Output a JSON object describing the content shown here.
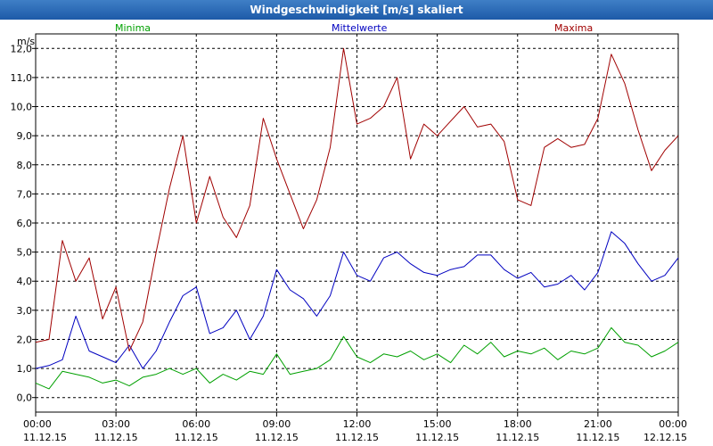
{
  "chart_data": {
    "type": "line",
    "title": "Windgeschwindigkeit [m/s] skaliert",
    "ylabel": "m/s",
    "ylim": [
      -0.5,
      12.5
    ],
    "yticks": [
      "0,0",
      "1,0",
      "2,0",
      "3,0",
      "4,0",
      "5,0",
      "6,0",
      "7,0",
      "8,0",
      "9,0",
      "10,0",
      "11,0",
      "12,0"
    ],
    "xlim": [
      0,
      24
    ],
    "xticks": [
      {
        "time": "00:00",
        "date": "11.12.15"
      },
      {
        "time": "03:00",
        "date": "11.12.15"
      },
      {
        "time": "06:00",
        "date": "11.12.15"
      },
      {
        "time": "09:00",
        "date": "11.12.15"
      },
      {
        "time": "12:00",
        "date": "11.12.15"
      },
      {
        "time": "15:00",
        "date": "11.12.15"
      },
      {
        "time": "18:00",
        "date": "11.12.15"
      },
      {
        "time": "21:00",
        "date": "11.12.15"
      },
      {
        "time": "00:00",
        "date": "12.12.15"
      }
    ],
    "grid": true,
    "series": [
      {
        "name": "Minima",
        "color": "#00a000",
        "x": [
          0,
          0.5,
          1,
          1.5,
          2,
          2.5,
          3,
          3.5,
          4,
          4.5,
          5,
          5.5,
          6,
          6.5,
          7,
          7.5,
          8,
          8.5,
          9,
          9.5,
          10,
          10.5,
          11,
          11.5,
          12,
          12.5,
          13,
          13.5,
          14,
          14.5,
          15,
          15.5,
          16,
          16.5,
          17,
          17.5,
          18,
          18.5,
          19,
          19.5,
          20,
          20.5,
          21,
          21.5,
          22,
          22.5,
          23,
          23.5,
          24
        ],
        "values": [
          0.5,
          0.3,
          0.9,
          0.8,
          0.7,
          0.5,
          0.6,
          0.4,
          0.7,
          0.8,
          1.0,
          0.8,
          1.0,
          0.5,
          0.8,
          0.6,
          0.9,
          0.8,
          1.5,
          0.8,
          0.9,
          1.0,
          1.3,
          2.1,
          1.4,
          1.2,
          1.5,
          1.4,
          1.6,
          1.3,
          1.5,
          1.2,
          1.8,
          1.5,
          1.9,
          1.4,
          1.6,
          1.5,
          1.7,
          1.3,
          1.6,
          1.5,
          1.7,
          2.4,
          1.9,
          1.8,
          1.4,
          1.6,
          1.9
        ]
      },
      {
        "name": "Mittelwerte",
        "color": "#0000c0",
        "x": [
          0,
          0.5,
          1,
          1.5,
          2,
          2.5,
          3,
          3.5,
          4,
          4.5,
          5,
          5.5,
          6,
          6.5,
          7,
          7.5,
          8,
          8.5,
          9,
          9.5,
          10,
          10.5,
          11,
          11.5,
          12,
          12.5,
          13,
          13.5,
          14,
          14.5,
          15,
          15.5,
          16,
          16.5,
          17,
          17.5,
          18,
          18.5,
          19,
          19.5,
          20,
          20.5,
          21,
          21.5,
          22,
          22.5,
          23,
          23.5,
          24
        ],
        "values": [
          1.0,
          1.1,
          1.3,
          2.8,
          1.6,
          1.4,
          1.2,
          1.8,
          1.0,
          1.6,
          2.6,
          3.5,
          3.8,
          2.2,
          2.4,
          3.0,
          2.0,
          2.8,
          4.4,
          3.7,
          3.4,
          2.8,
          3.5,
          5.0,
          4.2,
          4.0,
          4.8,
          5.0,
          4.6,
          4.3,
          4.2,
          4.4,
          4.5,
          4.9,
          4.9,
          4.4,
          4.1,
          4.3,
          3.8,
          3.9,
          4.2,
          3.7,
          4.3,
          5.7,
          5.3,
          4.6,
          4.0,
          4.2,
          4.8
        ]
      },
      {
        "name": "Maxima",
        "color": "#a00000",
        "x": [
          0,
          0.5,
          1,
          1.5,
          2,
          2.5,
          3,
          3.5,
          4,
          4.5,
          5,
          5.5,
          6,
          6.5,
          7,
          7.5,
          8,
          8.5,
          9,
          9.5,
          10,
          10.5,
          11,
          11.5,
          12,
          12.5,
          13,
          13.5,
          14,
          14.5,
          15,
          15.5,
          16,
          16.5,
          17,
          17.5,
          18,
          18.5,
          19,
          19.5,
          20,
          20.5,
          21,
          21.5,
          22,
          22.5,
          23,
          23.5,
          24
        ],
        "values": [
          1.9,
          2.0,
          5.4,
          4.0,
          4.8,
          2.7,
          3.8,
          1.6,
          2.6,
          5.0,
          7.2,
          9.0,
          6.0,
          7.6,
          6.2,
          5.5,
          6.6,
          9.6,
          8.2,
          7.0,
          5.8,
          6.8,
          8.6,
          12.0,
          9.4,
          9.6,
          10.0,
          11.0,
          8.2,
          9.4,
          9.0,
          9.5,
          10.0,
          9.3,
          9.4,
          8.8,
          6.8,
          6.6,
          8.6,
          8.9,
          8.6,
          8.7,
          9.6,
          11.8,
          10.8,
          9.2,
          7.8,
          8.5,
          9.0
        ]
      }
    ]
  }
}
